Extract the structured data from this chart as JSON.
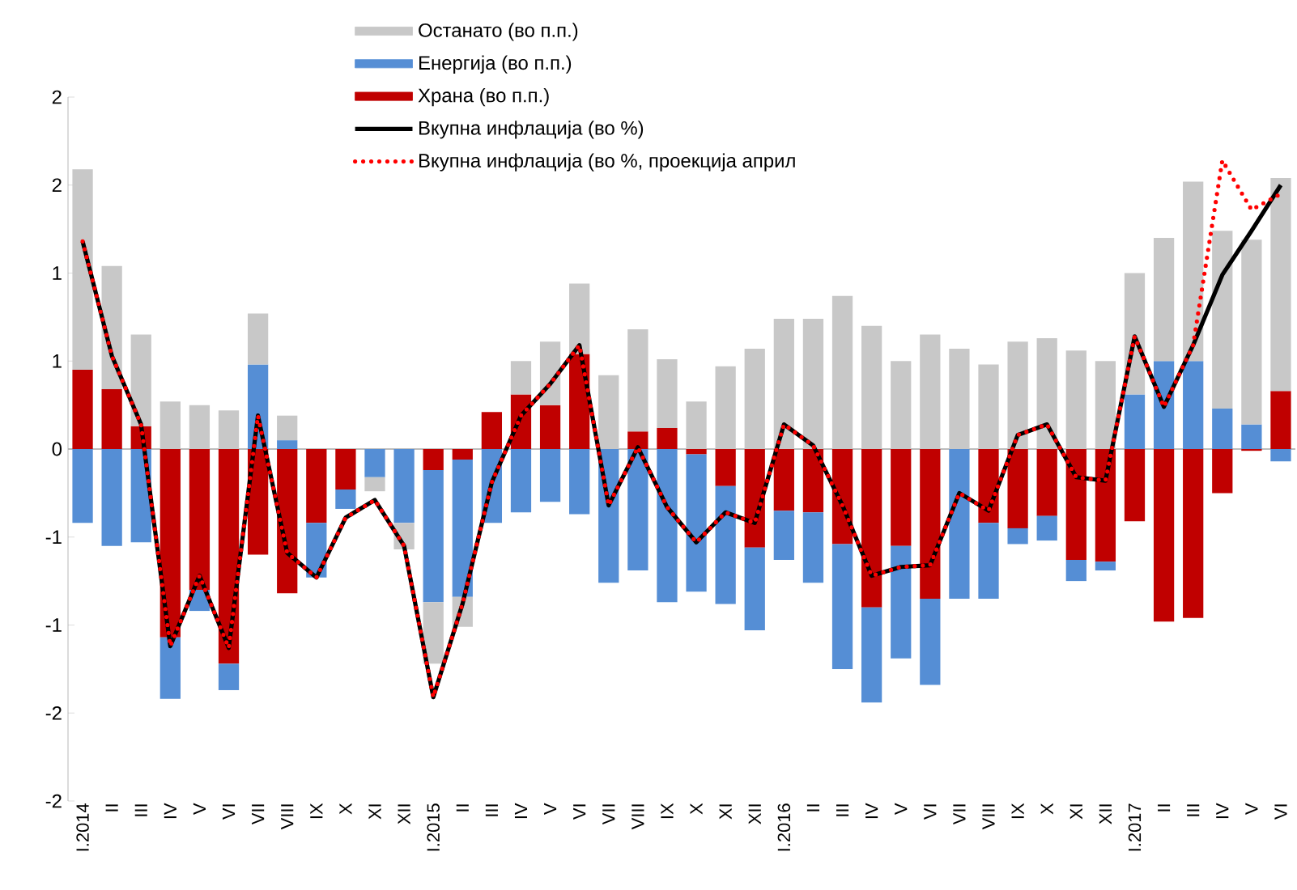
{
  "chart_data": {
    "type": "bar",
    "stacked": true,
    "legend": "top",
    "categories": [
      "I.2014",
      "II",
      "III",
      "IV",
      "V",
      "VI",
      "VII",
      "VIII",
      "IX",
      "X",
      "XI",
      "XII",
      "I.2015",
      "II",
      "III",
      "IV",
      "V",
      "VI",
      "VII",
      "VIII",
      "IX",
      "X",
      "XI",
      "XII",
      "I.2016",
      "II",
      "III",
      "IV",
      "V",
      "VI",
      "VII",
      "VIII",
      "IX",
      "X",
      "XI",
      "XII",
      "I.2017",
      "II",
      "III",
      "IV",
      "V",
      "VI"
    ],
    "ylim": [
      -2,
      2
    ],
    "yticks": [
      {
        "value": -2,
        "label": "-2"
      },
      {
        "value": -1.5,
        "label": "-2"
      },
      {
        "value": -1,
        "label": "-1"
      },
      {
        "value": -0.5,
        "label": "-1"
      },
      {
        "value": 0,
        "label": "0"
      },
      {
        "value": 0.5,
        "label": "1"
      },
      {
        "value": 1,
        "label": "1"
      },
      {
        "value": 1.5,
        "label": "2"
      },
      {
        "value": 2,
        "label": "2"
      }
    ],
    "series": [
      {
        "name": "Храна (во п.п.)",
        "color": "#c00000",
        "values": [
          0.45,
          0.34,
          0.13,
          -1.07,
          -0.8,
          -1.22,
          -0.6,
          -0.82,
          -0.42,
          -0.23,
          0,
          0,
          -0.12,
          -0.06,
          0.21,
          0.31,
          0.25,
          0.54,
          0,
          0.1,
          0.12,
          -0.03,
          -0.21,
          -0.56,
          -0.35,
          -0.36,
          -0.54,
          -0.9,
          -0.55,
          -0.85,
          0,
          -0.42,
          -0.45,
          -0.38,
          -0.63,
          -0.64,
          -0.41,
          -0.98,
          -0.96,
          -0.25,
          -0.01,
          0.33
        ]
      },
      {
        "name": "Енергија (во п.п.)",
        "color": "#558ed5",
        "values": [
          -0.42,
          -0.55,
          -0.53,
          -0.35,
          -0.12,
          -0.15,
          0.48,
          0.05,
          -0.31,
          -0.11,
          -0.16,
          -0.42,
          -0.75,
          -0.78,
          -0.42,
          -0.36,
          -0.3,
          -0.37,
          -0.76,
          -0.69,
          -0.87,
          -0.78,
          -0.67,
          -0.47,
          -0.28,
          -0.4,
          -0.71,
          -0.54,
          -0.64,
          -0.49,
          -0.85,
          -0.43,
          -0.09,
          -0.14,
          -0.12,
          -0.05,
          0.31,
          0.5,
          0.5,
          0.23,
          0.14,
          -0.07
        ]
      },
      {
        "name": "Останато (во п.п.)",
        "color": "#c8c8c8",
        "values": [
          1.14,
          0.7,
          0.52,
          0.27,
          0.25,
          0.22,
          0.29,
          0.14,
          0,
          0,
          -0.08,
          -0.15,
          -0.35,
          -0.17,
          0,
          0.19,
          0.36,
          0.4,
          0.42,
          0.58,
          0.39,
          0.27,
          0.47,
          0.57,
          0.74,
          0.74,
          0.87,
          0.7,
          0.5,
          0.65,
          0.57,
          0.48,
          0.61,
          0.63,
          0.56,
          0.5,
          0.69,
          0.7,
          1.02,
          1.01,
          1.05,
          1.21
        ]
      },
      {
        "name": "Вкупна инфлација (во %)",
        "type": "line",
        "line_style": "solid",
        "color": "#000000",
        "values": [
          1.18,
          0.53,
          0.14,
          -1.12,
          -0.72,
          -1.13,
          0.19,
          -0.59,
          -0.73,
          -0.39,
          -0.29,
          -0.55,
          -1.41,
          -0.88,
          -0.19,
          0.19,
          0.37,
          0.59,
          -0.32,
          0.01,
          -0.33,
          -0.53,
          -0.36,
          -0.42,
          0.14,
          0.02,
          -0.32,
          -0.72,
          -0.67,
          -0.66,
          -0.25,
          -0.35,
          0.08,
          0.14,
          -0.16,
          -0.18,
          0.64,
          0.24,
          0.59,
          0.99,
          1.24,
          1.5
        ]
      },
      {
        "name": "Вкупна инфлација (во %, проекција април",
        "type": "line",
        "line_style": "dotted",
        "color": "#ff0000",
        "values": [
          1.18,
          0.53,
          0.14,
          -1.12,
          -0.72,
          -1.13,
          0.19,
          -0.59,
          -0.73,
          -0.39,
          -0.29,
          -0.55,
          -1.41,
          -0.88,
          -0.19,
          0.19,
          0.37,
          0.59,
          -0.32,
          0.01,
          -0.33,
          -0.53,
          -0.36,
          -0.42,
          0.14,
          0.02,
          -0.32,
          -0.72,
          -0.67,
          -0.66,
          -0.25,
          -0.35,
          0.08,
          0.14,
          -0.16,
          -0.18,
          0.64,
          0.24,
          0.59,
          1.64,
          1.36,
          1.45
        ]
      }
    ]
  }
}
